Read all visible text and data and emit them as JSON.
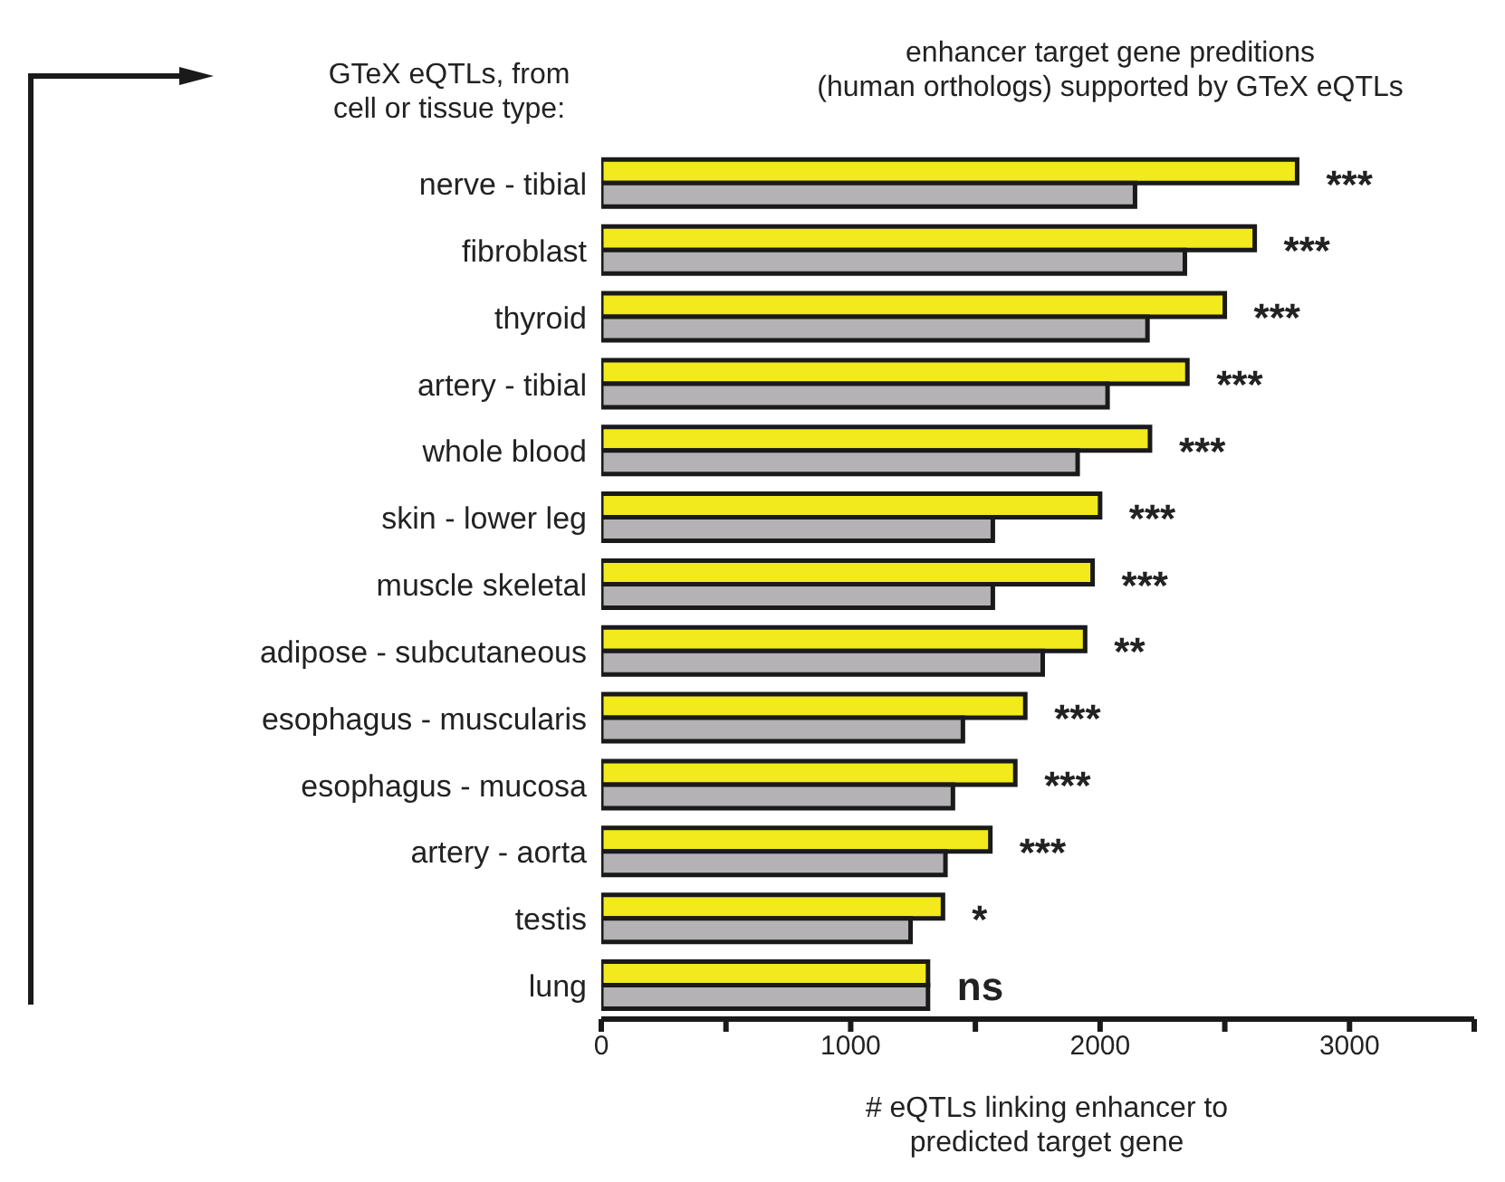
{
  "chart_data": {
    "type": "bar",
    "orientation": "horizontal",
    "title": "enhancer target gene preditions\n(human orthologs) supported by GTeX eQTLs",
    "ylabel": "GTeX eQTLs, from\ncell or tissue type:",
    "xlabel": "# eQTLs linking enhancer to\npredicted target gene",
    "categories": [
      "nerve - tibial",
      "fibroblast",
      "thyroid",
      "artery - tibial",
      "whole blood",
      "skin - lower leg",
      "muscle skeletal",
      "adipose - subcutaneous",
      "esophagus - muscularis",
      "esophagus - mucosa",
      "artery - aorta",
      "testis",
      "lung"
    ],
    "series": [
      {
        "color": "#f2ea1c",
        "values": [
          2790,
          2620,
          2500,
          2350,
          2200,
          2000,
          1970,
          1940,
          1700,
          1660,
          1560,
          1370,
          1310
        ]
      },
      {
        "color": "#b4b2b4",
        "values": [
          2140,
          2340,
          2190,
          2030,
          1910,
          1570,
          1570,
          1770,
          1450,
          1410,
          1380,
          1240,
          1310
        ]
      }
    ],
    "xlim": [
      0,
      3500
    ],
    "xticks": [
      0,
      {
        "value": 500,
        "label": null
      },
      1000,
      {
        "value": 1500,
        "label": null
      },
      2000,
      {
        "value": 2500,
        "label": null
      },
      3000,
      {
        "value": 3500,
        "label": null
      }
    ],
    "grid": false,
    "legend": false,
    "annotations": [
      {
        "text": "***",
        "x": 2790,
        "y": "nerve - tibial"
      },
      {
        "text": "***",
        "x": 2620,
        "y": "fibroblast"
      },
      {
        "text": "***",
        "x": 2500,
        "y": "thyroid"
      },
      {
        "text": "***",
        "x": 2350,
        "y": "artery - tibial"
      },
      {
        "text": "***",
        "x": 2200,
        "y": "whole blood"
      },
      {
        "text": "***",
        "x": 2000,
        "y": "skin - lower leg"
      },
      {
        "text": "***",
        "x": 1970,
        "y": "muscle skeletal"
      },
      {
        "text": "**",
        "x": 1940,
        "y": "adipose - subcutaneous"
      },
      {
        "text": "***",
        "x": 1700,
        "y": "esophagus - muscularis"
      },
      {
        "text": "***",
        "x": 1660,
        "y": "esophagus - mucosa"
      },
      {
        "text": "***",
        "x": 1560,
        "y": "artery - aorta"
      },
      {
        "text": "*",
        "x": 1370,
        "y": "testis"
      },
      {
        "text": "ns",
        "x": 1310,
        "y": "lung"
      }
    ]
  }
}
